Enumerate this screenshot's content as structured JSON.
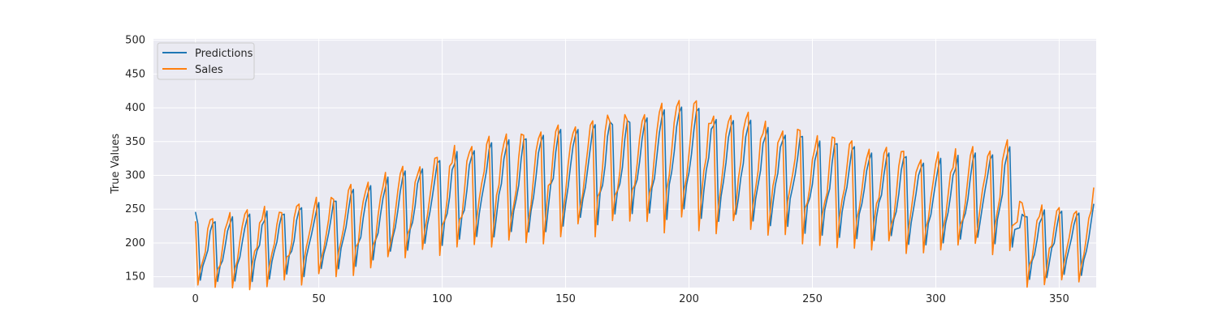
{
  "chart_data": {
    "type": "line",
    "title": "",
    "xlabel": "",
    "ylabel": "True Values",
    "xlim": [
      -17,
      365
    ],
    "ylim": [
      134,
      502
    ],
    "xticks": [
      0,
      50,
      100,
      150,
      200,
      250,
      300,
      350
    ],
    "yticks": [
      150,
      200,
      250,
      300,
      350,
      400,
      450,
      500
    ],
    "grid": true,
    "legend_position": "top-left",
    "anchors": [
      [
        0,
        200
      ],
      [
        8,
        200
      ],
      [
        50,
        220
      ],
      [
        100,
        280
      ],
      [
        150,
        320
      ],
      [
        200,
        345
      ],
      [
        250,
        305
      ],
      [
        300,
        275
      ],
      [
        330,
        290
      ],
      [
        336,
        210
      ],
      [
        365,
        215
      ]
    ],
    "series": [
      {
        "name": "Predictions",
        "color": "#1f77b4",
        "amplitude": 0.87,
        "lag": 1,
        "start": 246,
        "end": 258
      },
      {
        "name": "Sales",
        "color": "#ff7f0e",
        "amplitude": 1.0,
        "lag": 0,
        "start": 232,
        "end": 282
      }
    ]
  }
}
